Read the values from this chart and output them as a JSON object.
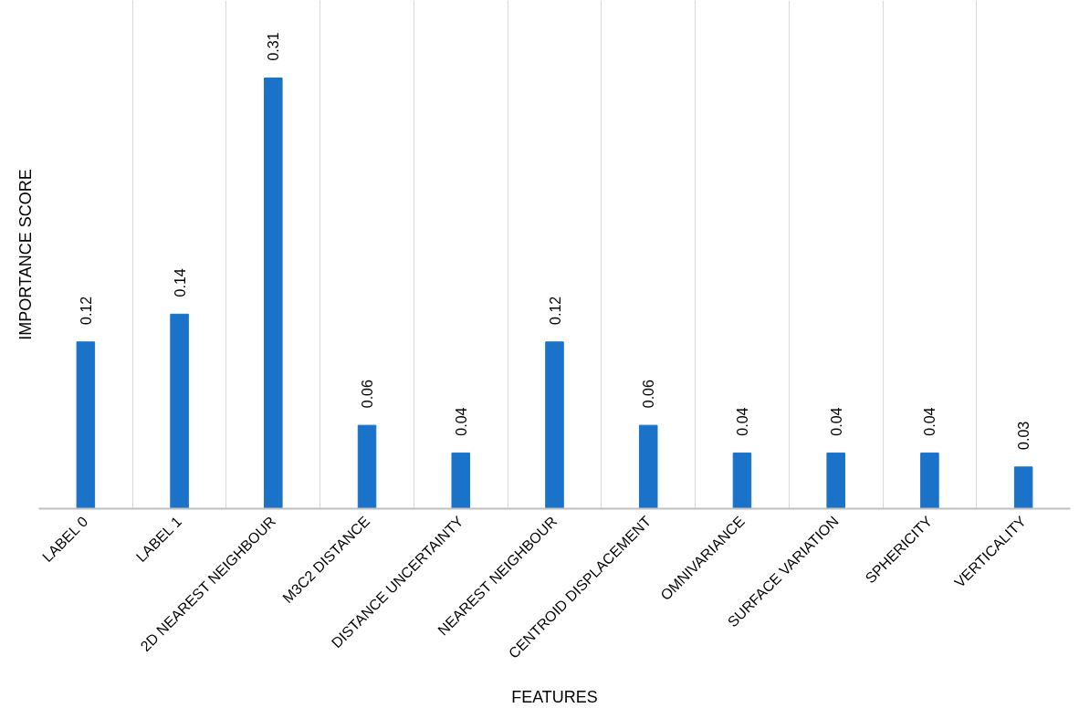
{
  "chart_data": {
    "type": "bar",
    "xlabel": "FEATURES",
    "ylabel": "IMPORTANCE SCORE",
    "categories": [
      "LABEL 0",
      "LABEL 1",
      "2D NEAREST NEIGHBOUR",
      "M3C2 DISTANCE",
      "DISTANCE UNCERTAINTY",
      "NEAREST NEIGHBOUR",
      "CENTROID DISPLACEMENT",
      "OMNIVARIANCE",
      "SURFACE VARIATION",
      "SPHERICITY",
      "VERTICALITY"
    ],
    "values": [
      0.12,
      0.14,
      0.31,
      0.06,
      0.04,
      0.12,
      0.06,
      0.04,
      0.04,
      0.04,
      0.03
    ],
    "color": "#1a73c8",
    "data_labels": true,
    "grid": "x"
  }
}
